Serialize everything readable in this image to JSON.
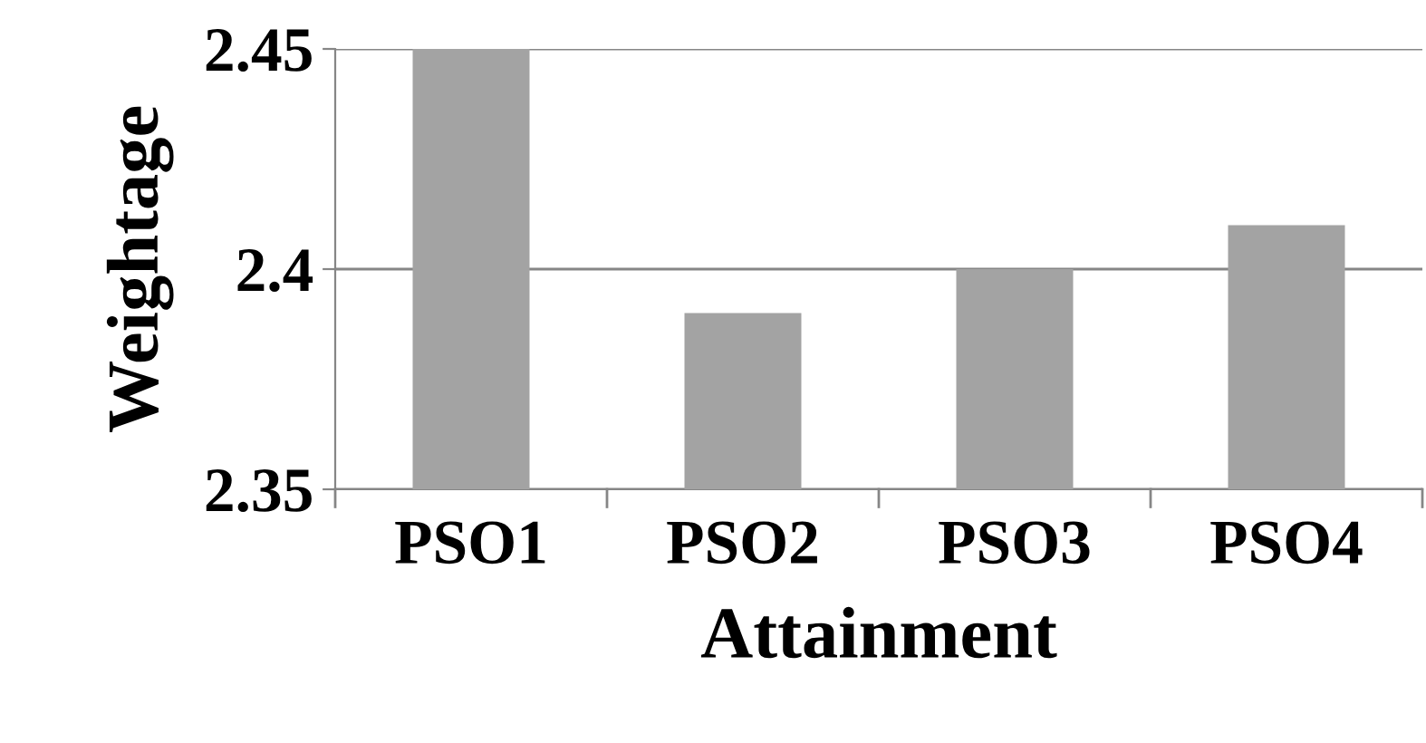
{
  "chart_data": {
    "type": "bar",
    "xlabel": "Attainment",
    "ylabel": "Weightage",
    "categories": [
      "PSO1",
      "PSO2",
      "PSO3",
      "PSO4"
    ],
    "values": [
      2.45,
      2.39,
      2.4,
      2.41
    ],
    "color": "#a3a3a3",
    "ylim": [
      2.35,
      2.45
    ],
    "yticks": [
      2.35,
      2.4,
      2.45
    ],
    "grid": "y"
  }
}
